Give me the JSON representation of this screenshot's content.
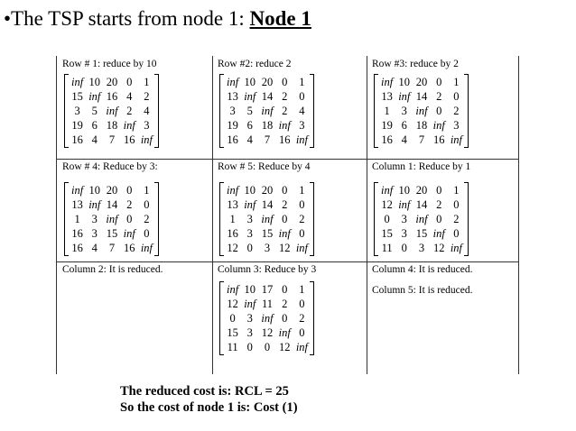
{
  "title": {
    "prefix": "•The TSP starts from node 1: ",
    "highlight": "Node 1"
  },
  "panels": [
    {
      "heading": "Row # 1: reduce by 10",
      "matrix": [
        [
          "inf",
          "10",
          "20",
          "0",
          "1"
        ],
        [
          "15",
          "inf",
          "16",
          "4",
          "2"
        ],
        [
          "3",
          "5",
          "inf",
          "2",
          "4"
        ],
        [
          "19",
          "6",
          "18",
          "inf",
          "3"
        ],
        [
          "16",
          "4",
          "7",
          "16",
          "inf"
        ]
      ]
    },
    {
      "heading": "Row #2: reduce 2",
      "matrix": [
        [
          "inf",
          "10",
          "20",
          "0",
          "1"
        ],
        [
          "13",
          "inf",
          "14",
          "2",
          "0"
        ],
        [
          "3",
          "5",
          "inf",
          "2",
          "4"
        ],
        [
          "19",
          "6",
          "18",
          "inf",
          "3"
        ],
        [
          "16",
          "4",
          "7",
          "16",
          "inf"
        ]
      ]
    },
    {
      "heading": "Row #3: reduce by 2",
      "matrix": [
        [
          "inf",
          "10",
          "20",
          "0",
          "1"
        ],
        [
          "13",
          "inf",
          "14",
          "2",
          "0"
        ],
        [
          "1",
          "3",
          "inf",
          "0",
          "2"
        ],
        [
          "19",
          "6",
          "18",
          "inf",
          "3"
        ],
        [
          "16",
          "4",
          "7",
          "16",
          "inf"
        ]
      ]
    },
    {
      "heading": "Row # 4: Reduce by 3:",
      "matrix": [
        [
          "inf",
          "10",
          "20",
          "0",
          "1"
        ],
        [
          "13",
          "inf",
          "14",
          "2",
          "0"
        ],
        [
          "1",
          "3",
          "inf",
          "0",
          "2"
        ],
        [
          "16",
          "3",
          "15",
          "inf",
          "0"
        ],
        [
          "16",
          "4",
          "7",
          "16",
          "inf"
        ]
      ]
    },
    {
      "heading": "Row # 5: Reduce by 4",
      "matrix": [
        [
          "inf",
          "10",
          "20",
          "0",
          "1"
        ],
        [
          "13",
          "inf",
          "14",
          "2",
          "0"
        ],
        [
          "1",
          "3",
          "inf",
          "0",
          "2"
        ],
        [
          "16",
          "3",
          "15",
          "inf",
          "0"
        ],
        [
          "12",
          "0",
          "3",
          "12",
          "inf"
        ]
      ]
    },
    {
      "heading": "Column 1: Reduce by 1",
      "matrix": [
        [
          "inf",
          "10",
          "20",
          "0",
          "1"
        ],
        [
          "12",
          "inf",
          "14",
          "2",
          "0"
        ],
        [
          "0",
          "3",
          "inf",
          "0",
          "2"
        ],
        [
          "15",
          "3",
          "15",
          "inf",
          "0"
        ],
        [
          "11",
          "0",
          "3",
          "12",
          "inf"
        ]
      ]
    },
    {
      "heading": "Column 2: It is reduced.",
      "matrix": []
    },
    {
      "heading": "Column 3: Reduce by 3",
      "matrix": [
        [
          "inf",
          "10",
          "17",
          "0",
          "1"
        ],
        [
          "12",
          "inf",
          "11",
          "2",
          "0"
        ],
        [
          "0",
          "3",
          "inf",
          "0",
          "2"
        ],
        [
          "15",
          "3",
          "12",
          "inf",
          "0"
        ],
        [
          "11",
          "0",
          "0",
          "12",
          "inf"
        ]
      ]
    },
    {
      "heading": "Column 4: It is reduced.",
      "matrix": []
    }
  ],
  "extra_note": "Column 5: It is reduced.",
  "footer": {
    "line1": "The reduced cost is: RCL = 25",
    "line2": "So the cost of node 1 is: Cost (1)"
  }
}
